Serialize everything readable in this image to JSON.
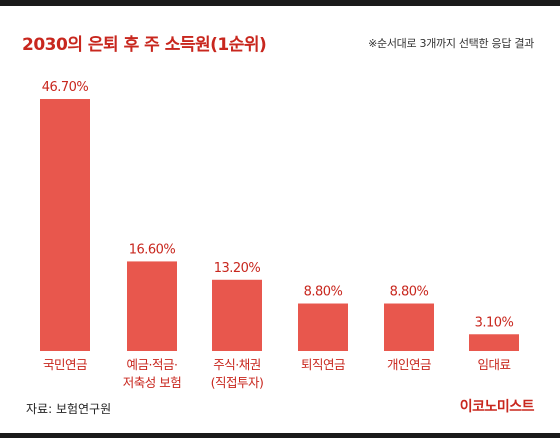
{
  "header": {
    "title": "2030의 은퇴 후 주 소득원(1순위)",
    "note": "※순서대로 3개까지 선택한 응답 결과"
  },
  "footer": {
    "source": "자료: 보험연구원",
    "brand": "이코노미스트"
  },
  "colors": {
    "bar": "#e8574d",
    "accent": "#c8271e",
    "label_text": "#c8271e",
    "value_text": "#c8271e"
  },
  "chart_data": {
    "type": "bar",
    "title": "2030의 은퇴 후 주 소득원(1순위)",
    "xlabel": "",
    "ylabel": "",
    "unit": "%",
    "ylim": [
      0,
      50
    ],
    "grid": false,
    "categories": [
      [
        "국민연금"
      ],
      [
        "예금·적금·",
        "저축성 보험"
      ],
      [
        "주식·채권",
        "(직접투자)"
      ],
      [
        "퇴직연금"
      ],
      [
        "개인연금"
      ],
      [
        "임대료"
      ]
    ],
    "values": [
      46.7,
      16.6,
      13.2,
      8.8,
      8.8,
      3.1
    ],
    "value_labels": [
      "46.70%",
      "16.60%",
      "13.20%",
      "8.80%",
      "8.80%",
      "3.10%"
    ]
  }
}
